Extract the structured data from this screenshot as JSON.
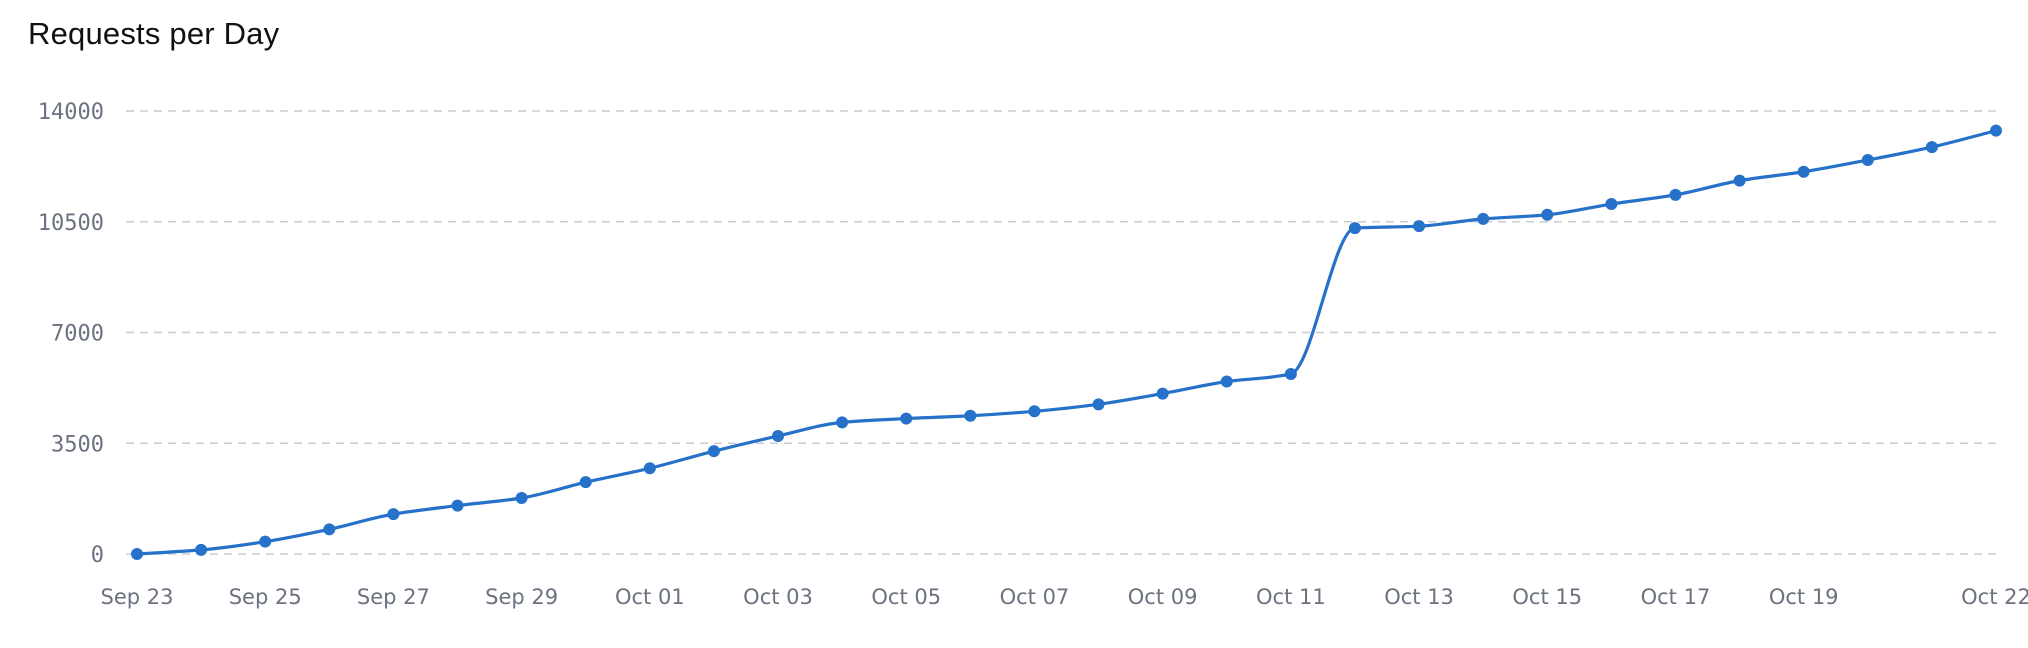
{
  "chart_data": {
    "type": "line",
    "title": "Requests per Day",
    "xlabel": "",
    "ylabel": "",
    "ylim": [
      0,
      14000
    ],
    "yticks": [
      0,
      3500,
      7000,
      10500,
      14000
    ],
    "grid": true,
    "legend": "none",
    "line_color": "#2671c9",
    "x": [
      "Sep 23",
      "Sep 24",
      "Sep 25",
      "Sep 26",
      "Sep 27",
      "Sep 28",
      "Sep 29",
      "Sep 30",
      "Oct 01",
      "Oct 02",
      "Oct 03",
      "Oct 04",
      "Oct 05",
      "Oct 06",
      "Oct 07",
      "Oct 08",
      "Oct 09",
      "Oct 10",
      "Oct 11",
      "Oct 12",
      "Oct 13",
      "Oct 14",
      "Oct 15",
      "Oct 16",
      "Oct 17",
      "Oct 18",
      "Oct 19",
      "Oct 20",
      "Oct 21",
      "Oct 22"
    ],
    "x_tick_labels": [
      "Sep 23",
      "Sep 25",
      "Sep 27",
      "Sep 29",
      "Oct 01",
      "Oct 03",
      "Oct 05",
      "Oct 07",
      "Oct 09",
      "Oct 11",
      "Oct 13",
      "Oct 15",
      "Oct 17",
      "Oct 19",
      "Oct 22"
    ],
    "values": [
      0,
      130,
      390,
      780,
      1260,
      1530,
      1770,
      2270,
      2710,
      3250,
      3730,
      4160,
      4280,
      4370,
      4510,
      4730,
      5070,
      5450,
      5690,
      10300,
      10360,
      10590,
      10720,
      11060,
      11350,
      11800,
      12080,
      12450,
      12860,
      13380
    ]
  }
}
